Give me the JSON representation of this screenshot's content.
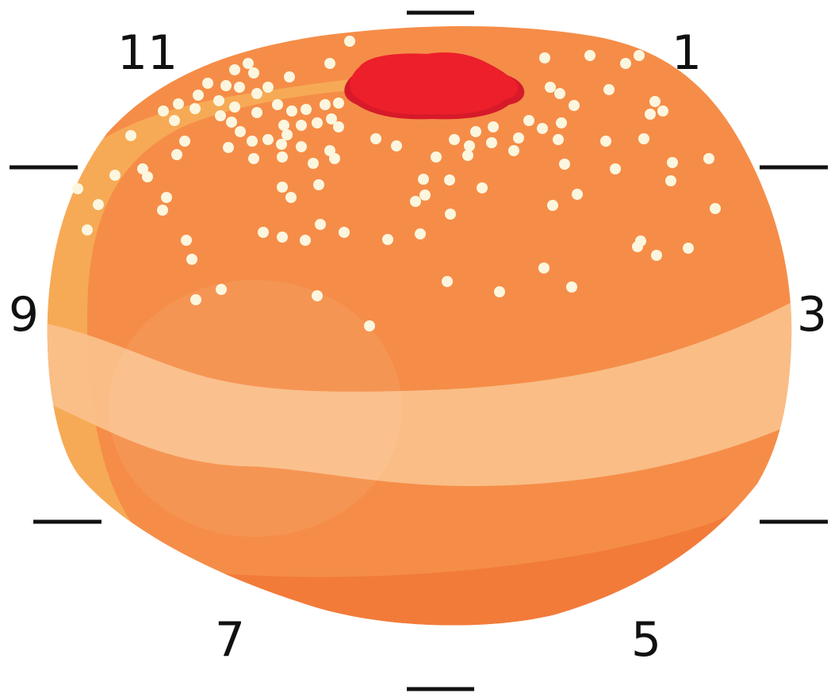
{
  "labels": {
    "n11": "11",
    "n1": "1",
    "n9": "9",
    "n3": "3",
    "n7": "7",
    "n5": "5"
  },
  "colors": {
    "body": "#F58D48",
    "shadow": "#F27B3A",
    "highlight": "#F6AA55",
    "band": "#FAC08A",
    "jam": "#EC1F2B",
    "jam_dark": "#D61A29",
    "sugar": "#FCF6DF",
    "ticks": "#111111"
  }
}
